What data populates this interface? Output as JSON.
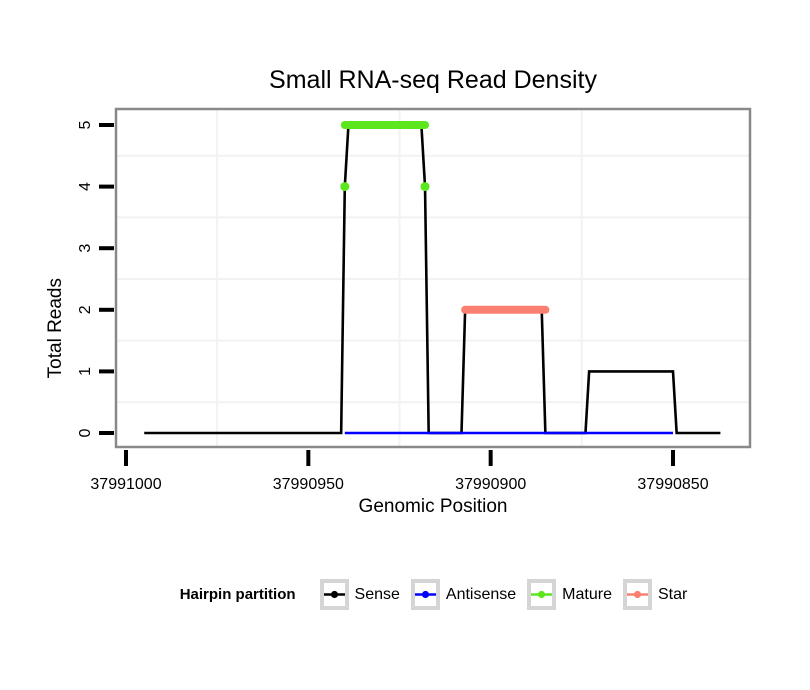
{
  "title": "Small RNA-seq Read Density",
  "axis_labels": {
    "x": "Genomic Position",
    "y": "Total Reads"
  },
  "chart_data": {
    "type": "line",
    "title": "Small RNA-seq Read Density",
    "xlabel": "Genomic Position",
    "ylabel": "Total Reads",
    "x_reversed": true,
    "x_domain": [
      37991003,
      37990829
    ],
    "y_domain": [
      -0.23,
      5.26
    ],
    "x_ticks": [
      37991000,
      37990950,
      37990900,
      37990850
    ],
    "y_ticks": [
      0,
      1,
      2,
      3,
      4,
      5
    ],
    "grid": {
      "x_lines": [
        37990975,
        37990925,
        37990875
      ],
      "y_lines": [
        0.5,
        1.5,
        2.5,
        3.5,
        4.5
      ],
      "color": "#F2F2F2"
    },
    "panel_border_color": "#898989",
    "series": [
      {
        "name": "Sense",
        "kind": "profile-line",
        "color": "#000000",
        "line_width": 2.6,
        "points": [
          [
            37990995,
            0
          ],
          [
            37990941,
            0
          ],
          [
            37990940,
            4
          ],
          [
            37990939,
            5
          ],
          [
            37990919,
            5
          ],
          [
            37990918,
            4
          ],
          [
            37990917,
            0
          ],
          [
            37990908,
            0
          ],
          [
            37990907,
            2
          ],
          [
            37990886,
            2
          ],
          [
            37990885,
            0
          ],
          [
            37990874,
            0
          ],
          [
            37990873,
            1
          ],
          [
            37990850,
            1
          ],
          [
            37990849,
            0
          ],
          [
            37990837,
            0
          ]
        ]
      },
      {
        "name": "Antisense",
        "kind": "profile-line",
        "color": "#0000FF",
        "line_width": 2.6,
        "points": [
          [
            37990940,
            0
          ],
          [
            37990850,
            0
          ]
        ]
      },
      {
        "name": "Mature",
        "kind": "thick-segment",
        "color": "#5CE61E",
        "line_width": 8,
        "points": [
          [
            37990940,
            5
          ],
          [
            37990918,
            5
          ]
        ],
        "markers": [
          [
            37990940,
            4
          ],
          [
            37990918,
            4
          ]
        ],
        "marker_radius": 4.5
      },
      {
        "name": "Star",
        "kind": "thick-segment",
        "color": "#FA8072",
        "line_width": 8,
        "points": [
          [
            37990907,
            2
          ],
          [
            37990885,
            2
          ]
        ]
      }
    ]
  },
  "legend": {
    "title": "Hairpin partition",
    "box_border_color": "#D5D5D5",
    "items": [
      {
        "label": "Sense",
        "color": "#000000"
      },
      {
        "label": "Antisense",
        "color": "#0000FF"
      },
      {
        "label": "Mature",
        "color": "#5CE61E"
      },
      {
        "label": "Star",
        "color": "#FA8072"
      }
    ]
  }
}
